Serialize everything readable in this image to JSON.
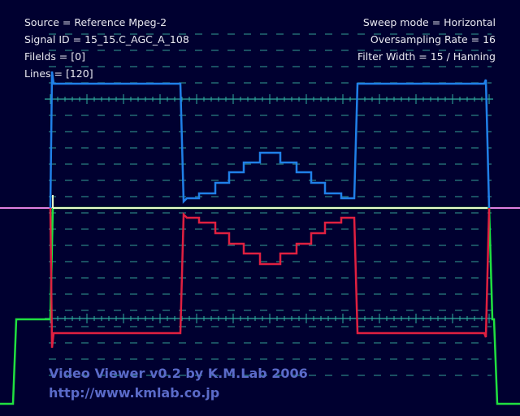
{
  "info": {
    "left": [
      "Source = Reference Mpeg-2",
      "Signal ID = 15_15.C_AGC_A_108",
      "Filelds = [0]",
      "Lines = [120]"
    ],
    "right": [
      "Sweep mode = Horizontal",
      "Oversampling Rate = 16",
      "Filter Width = 15 / Hanning"
    ]
  },
  "footer": {
    "title": "Video Viewer v0.2 by K.M.Lab 2006",
    "url": "http://www.kmlab.co.jp"
  }
}
